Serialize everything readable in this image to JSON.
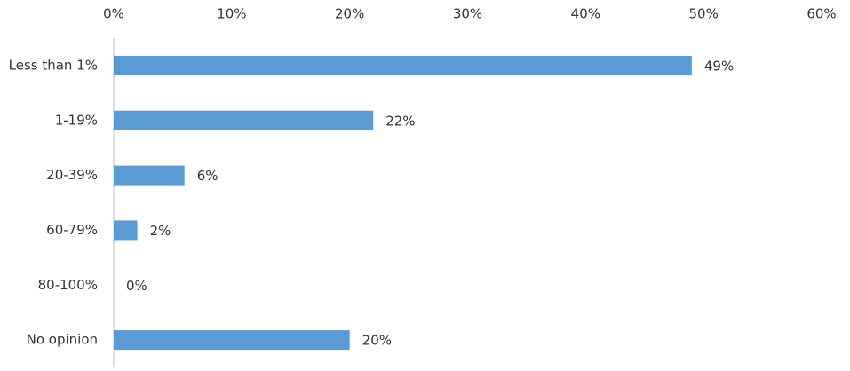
{
  "chart_data": {
    "type": "hbar",
    "categories": [
      "Less than 1%",
      "1-19%",
      "20-39%",
      "60-79%",
      "80-100%",
      "No opinion"
    ],
    "values": [
      49,
      22,
      6,
      2,
      0,
      20
    ],
    "value_labels": [
      "49%",
      "22%",
      "6%",
      "2%",
      "0%",
      "20%"
    ],
    "color": "#5b9bd5",
    "xlim": [
      0,
      60
    ],
    "xticks": [
      {
        "value": 0,
        "label": "0%"
      },
      {
        "value": 10,
        "label": "10%"
      },
      {
        "value": 20,
        "label": "20%"
      },
      {
        "value": 30,
        "label": "30%"
      },
      {
        "value": 40,
        "label": "40%"
      },
      {
        "value": 50,
        "label": "50%"
      },
      {
        "value": 60,
        "label": "60%"
      }
    ],
    "grid": false
  }
}
